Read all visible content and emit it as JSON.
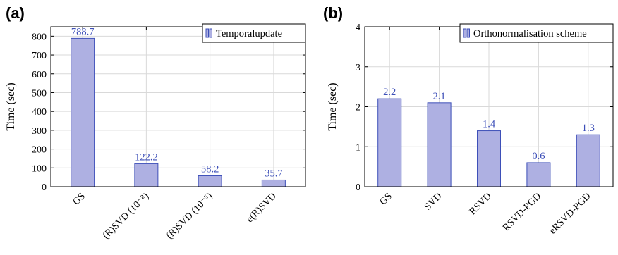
{
  "chart_data": [
    {
      "panel": "(a)",
      "type": "bar",
      "ylabel": "Time (sec)",
      "ylim": [
        0,
        850
      ],
      "yticks": [
        0,
        100,
        200,
        300,
        400,
        500,
        600,
        700,
        800
      ],
      "categories": [
        "GS",
        "(R)SVD (10⁻⁸)",
        "(R)SVD (10⁻⁵)",
        "e(R)SVD"
      ],
      "values": [
        788.7,
        122.2,
        58.2,
        35.7
      ],
      "value_labels": [
        "788.7",
        "122.2",
        "58.2",
        "35.7"
      ],
      "legend": "Temporalupdate",
      "legend_position": "top-right",
      "grid": true,
      "bar_color": "#aeb0e2",
      "edge_color": "#3d4fb8"
    },
    {
      "panel": "(b)",
      "type": "bar",
      "ylabel": "Time (sec)",
      "ylim": [
        0,
        4
      ],
      "yticks": [
        0,
        1,
        2,
        3,
        4
      ],
      "categories": [
        "GS",
        "SVD",
        "RSVD",
        "RSVD-PGD",
        "eRSVD-PGD"
      ],
      "values": [
        2.2,
        2.1,
        1.4,
        0.6,
        1.3
      ],
      "value_labels": [
        "2.2",
        "2.1",
        "1.4",
        "0.6",
        "1.3"
      ],
      "legend": "Orthonormalisation scheme",
      "legend_position": "top-right",
      "grid": true,
      "bar_color": "#aeb0e2",
      "edge_color": "#3d4fb8"
    }
  ]
}
